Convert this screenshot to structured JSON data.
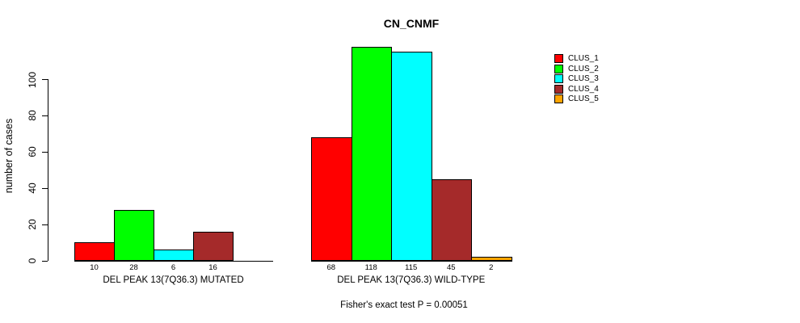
{
  "chart_data": {
    "type": "bar",
    "title": "CN_CNMF",
    "ylabel": "number of cases",
    "ylim": [
      0,
      100
    ],
    "yticks": [
      0,
      20,
      40,
      60,
      80,
      100
    ],
    "grid": false,
    "legend_position": "right-outside",
    "series": [
      {
        "name": "CLUS_1",
        "color": "#FF0000"
      },
      {
        "name": "CLUS_2",
        "color": "#00FF00"
      },
      {
        "name": "CLUS_3",
        "color": "#00FFFF"
      },
      {
        "name": "CLUS_4",
        "color": "#A52A2A"
      },
      {
        "name": "CLUS_5",
        "color": "#FFA500"
      }
    ],
    "groups": [
      {
        "label": "DEL PEAK 13(7Q36.3) MUTATED",
        "values": [
          10,
          28,
          6,
          16,
          0
        ]
      },
      {
        "label": "DEL PEAK 13(7Q36.3) WILD-TYPE",
        "values": [
          68,
          118,
          115,
          45,
          2
        ]
      }
    ],
    "caption": "Fisher's exact test P = 0.00051"
  }
}
